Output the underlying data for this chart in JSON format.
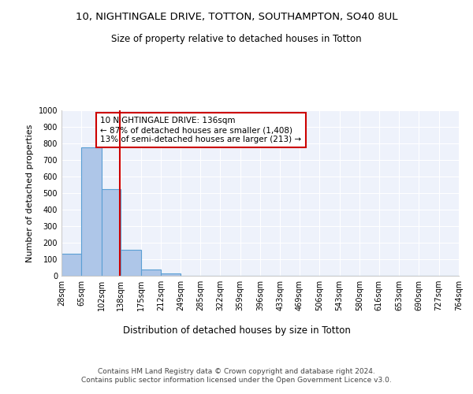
{
  "title_line1": "10, NIGHTINGALE DRIVE, TOTTON, SOUTHAMPTON, SO40 8UL",
  "title_line2": "Size of property relative to detached houses in Totton",
  "xlabel": "Distribution of detached houses by size in Totton",
  "ylabel": "Number of detached properties",
  "bin_edges": [
    28,
    65,
    102,
    138,
    175,
    212,
    249,
    285,
    322,
    359,
    396,
    433,
    469,
    506,
    543,
    580,
    616,
    653,
    690,
    727,
    764
  ],
  "bar_heights": [
    132,
    778,
    522,
    158,
    37,
    12,
    0,
    0,
    0,
    0,
    0,
    0,
    0,
    0,
    0,
    0,
    0,
    0,
    0,
    0
  ],
  "bar_color": "#aec6e8",
  "bar_edge_color": "#5a9fd4",
  "vline_x": 136,
  "vline_color": "#cc0000",
  "annotation_text": "10 NIGHTINGALE DRIVE: 136sqm\n← 87% of detached houses are smaller (1,408)\n13% of semi-detached houses are larger (213) →",
  "annotation_box_color": "#cc0000",
  "ylim": [
    0,
    1000
  ],
  "yticks": [
    0,
    100,
    200,
    300,
    400,
    500,
    600,
    700,
    800,
    900,
    1000
  ],
  "background_color": "#eef2fb",
  "grid_color": "#ffffff",
  "footer_text": "Contains HM Land Registry data © Crown copyright and database right 2024.\nContains public sector information licensed under the Open Government Licence v3.0.",
  "title_fontsize": 9.5,
  "subtitle_fontsize": 8.5,
  "ylabel_fontsize": 8,
  "xlabel_fontsize": 8.5,
  "tick_fontsize": 7,
  "annotation_fontsize": 7.5,
  "footer_fontsize": 6.5
}
